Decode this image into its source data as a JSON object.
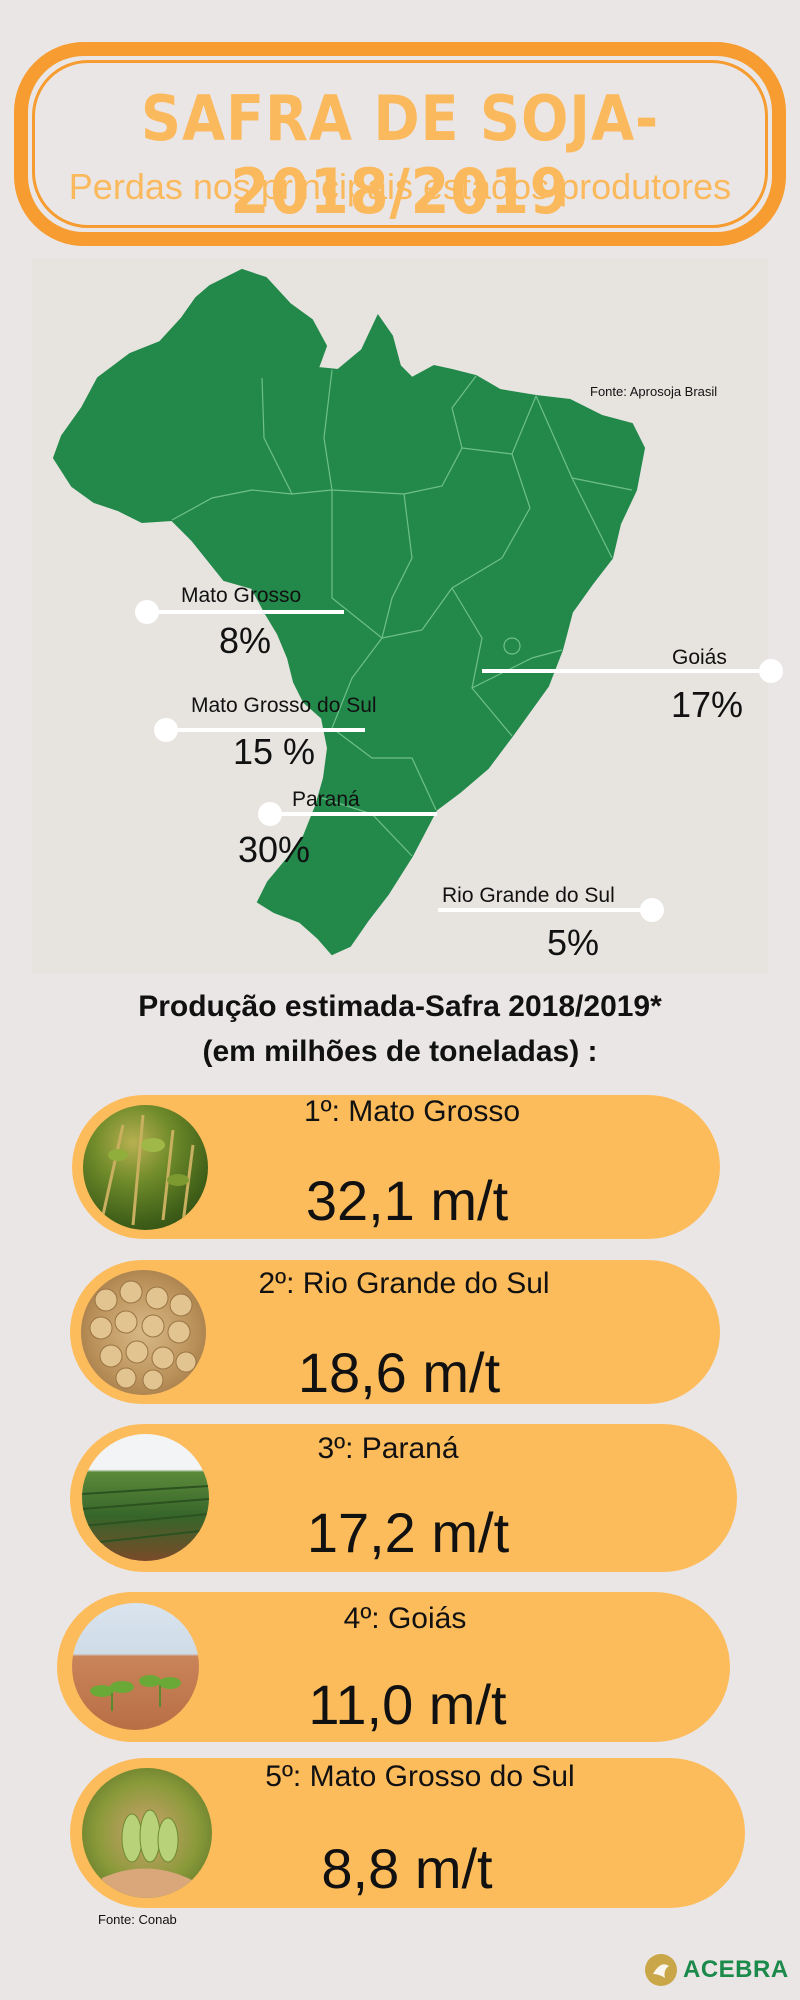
{
  "header": {
    "title": "SAFRA DE SOJA-2018/2019",
    "subtitle": "Perdas nos principais estados produtores"
  },
  "map": {
    "source": "Fonte: Aprosoja Brasil",
    "map_color": "#23894a",
    "states": [
      {
        "name": "Mato Grosso",
        "loss": "8%"
      },
      {
        "name": "Goiás",
        "loss": "17%"
      },
      {
        "name": "Mato Grosso do Sul",
        "loss": "15 %"
      },
      {
        "name": "Paraná",
        "loss": "30%"
      },
      {
        "name": "Rio Grande do Sul",
        "loss": "5%"
      }
    ]
  },
  "production": {
    "heading_line1": "Produção estimada-Safra 2018/2019*",
    "heading_line2": "(em milhões de toneladas) :",
    "ranking": [
      {
        "label": "1º: Mato Grosso",
        "value": "32,1 m/t",
        "photo": "soy-plants-photo"
      },
      {
        "label": "2º: Rio Grande do Sul",
        "value": "18,6 m/t",
        "photo": "soybeans-photo"
      },
      {
        "label": "3º: Paraná",
        "value": "17,2 m/t",
        "photo": "soy-field-photo"
      },
      {
        "label": "4º: Goiás",
        "value": "11,0 m/t",
        "photo": "seedlings-photo"
      },
      {
        "label": "5º: Mato Grosso do Sul",
        "value": "8,8 m/t",
        "photo": "soy-pods-hand-photo"
      }
    ],
    "source": "Fonte: Conab"
  },
  "logo": {
    "text": "ACEBRA"
  }
}
